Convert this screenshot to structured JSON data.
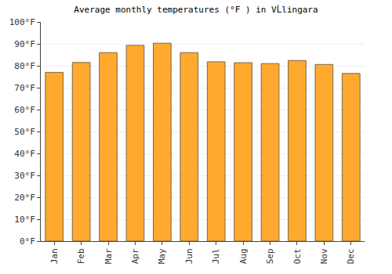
{
  "chart_data": {
    "type": "bar",
    "title": "Average monthly temperatures (°F ) in VĹlingara",
    "categories": [
      "Jan",
      "Feb",
      "Mar",
      "Apr",
      "May",
      "Jun",
      "Jul",
      "Aug",
      "Sep",
      "Oct",
      "Nov",
      "Dec"
    ],
    "values": [
      77,
      81.5,
      86,
      89.3,
      90.3,
      86,
      81.8,
      81.4,
      81,
      82.4,
      80.6,
      76.5
    ],
    "color": "#ffa92e",
    "ylim": [
      0,
      100
    ],
    "yticks": [
      {
        "value": 0,
        "label": "0°F"
      },
      {
        "value": 10,
        "label": "10°F"
      },
      {
        "value": 20,
        "label": "20°F"
      },
      {
        "value": 30,
        "label": "30°F"
      },
      {
        "value": 40,
        "label": "40°F"
      },
      {
        "value": 50,
        "label": "50°F"
      },
      {
        "value": 60,
        "label": "60°F"
      },
      {
        "value": 70,
        "label": "70°F"
      },
      {
        "value": 80,
        "label": "80°F"
      },
      {
        "value": 90,
        "label": "90°F"
      },
      {
        "value": 100,
        "label": "100°F"
      }
    ],
    "grid": true
  }
}
